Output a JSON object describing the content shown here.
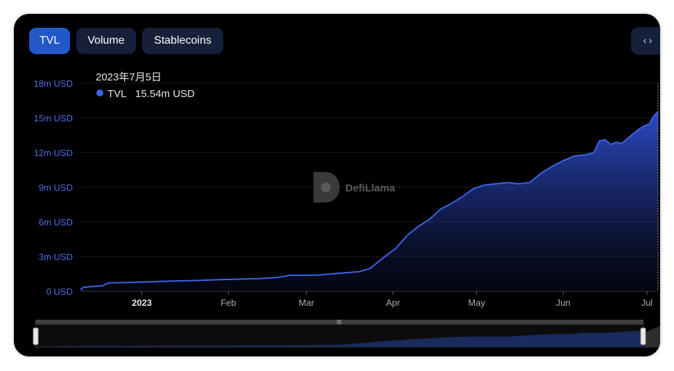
{
  "tabs": [
    {
      "label": "TVL",
      "active": true
    },
    {
      "label": "Volume",
      "active": false
    },
    {
      "label": "Stablecoins",
      "active": false
    }
  ],
  "embed_icon": "code-brackets-icon",
  "watermark": "DefiLlama",
  "tooltip": {
    "date": "2023年7月5日",
    "series": "TVL",
    "value": "15.54m USD"
  },
  "colors": {
    "accent": "#2258c7",
    "line": "#3c64e6",
    "background": "#000000",
    "button": "#17203a"
  },
  "chart_data": {
    "type": "area",
    "series": [
      {
        "name": "TVL",
        "unit": "USD",
        "points": [
          [
            "2022-12-10",
            0.1
          ],
          [
            "2022-12-11",
            0.35
          ],
          [
            "2022-12-18",
            0.48
          ],
          [
            "2022-12-20",
            0.72
          ],
          [
            "2022-12-25",
            0.75
          ],
          [
            "2023-01-01",
            0.8
          ],
          [
            "2023-01-08",
            0.85
          ],
          [
            "2023-01-15",
            0.9
          ],
          [
            "2023-01-22",
            0.95
          ],
          [
            "2023-01-29",
            1.0
          ],
          [
            "2023-02-05",
            1.05
          ],
          [
            "2023-02-12",
            1.1
          ],
          [
            "2023-02-19",
            1.2
          ],
          [
            "2023-02-23",
            1.38
          ],
          [
            "2023-03-05",
            1.4
          ],
          [
            "2023-03-12",
            1.55
          ],
          [
            "2023-03-16",
            1.62
          ],
          [
            "2023-03-20",
            1.7
          ],
          [
            "2023-03-24",
            2.0
          ],
          [
            "2023-03-28",
            2.8
          ],
          [
            "2023-04-02",
            3.7
          ],
          [
            "2023-04-06",
            4.8
          ],
          [
            "2023-04-10",
            5.6
          ],
          [
            "2023-04-14",
            6.2
          ],
          [
            "2023-04-18",
            7.1
          ],
          [
            "2023-04-22",
            7.6
          ],
          [
            "2023-04-26",
            8.2
          ],
          [
            "2023-04-30",
            8.9
          ],
          [
            "2023-05-04",
            9.2
          ],
          [
            "2023-05-08",
            9.3
          ],
          [
            "2023-05-12",
            9.4
          ],
          [
            "2023-05-16",
            9.3
          ],
          [
            "2023-05-20",
            9.4
          ],
          [
            "2023-05-24",
            10.2
          ],
          [
            "2023-05-28",
            10.8
          ],
          [
            "2023-06-01",
            11.3
          ],
          [
            "2023-06-05",
            11.7
          ],
          [
            "2023-06-09",
            11.8
          ],
          [
            "2023-06-12",
            12.0
          ],
          [
            "2023-06-14",
            13.0
          ],
          [
            "2023-06-16",
            13.1
          ],
          [
            "2023-06-18",
            12.7
          ],
          [
            "2023-06-20",
            12.9
          ],
          [
            "2023-06-22",
            12.8
          ],
          [
            "2023-06-24",
            13.2
          ],
          [
            "2023-06-26",
            13.6
          ],
          [
            "2023-06-28",
            14.0
          ],
          [
            "2023-06-30",
            14.3
          ],
          [
            "2023-07-01",
            14.4
          ],
          [
            "2023-07-02",
            14.5
          ],
          [
            "2023-07-03",
            15.0
          ],
          [
            "2023-07-04",
            15.3
          ],
          [
            "2023-07-05",
            15.54
          ]
        ]
      }
    ],
    "y_ticks": [
      "0 USD",
      "3m USD",
      "6m USD",
      "9m USD",
      "12m USD",
      "15m USD",
      "18m USD"
    ],
    "y_tick_values": [
      0,
      3,
      6,
      9,
      12,
      15,
      18
    ],
    "ylim": [
      0,
      18
    ],
    "y_scale": "millions USD",
    "x_ticks": [
      {
        "label": "2023",
        "date": "2023-01-01",
        "bold": true
      },
      {
        "label": "Feb",
        "date": "2023-02-01",
        "bold": false
      },
      {
        "label": "Mar",
        "date": "2023-03-01",
        "bold": false
      },
      {
        "label": "Apr",
        "date": "2023-04-01",
        "bold": false
      },
      {
        "label": "May",
        "date": "2023-05-01",
        "bold": false
      },
      {
        "label": "Jun",
        "date": "2023-06-01",
        "bold": false
      },
      {
        "label": "Jul",
        "date": "2023-07-01",
        "bold": false
      }
    ],
    "xlim": [
      "2022-12-10",
      "2023-07-05"
    ],
    "grid": true,
    "legend": "tooltip top-left"
  }
}
